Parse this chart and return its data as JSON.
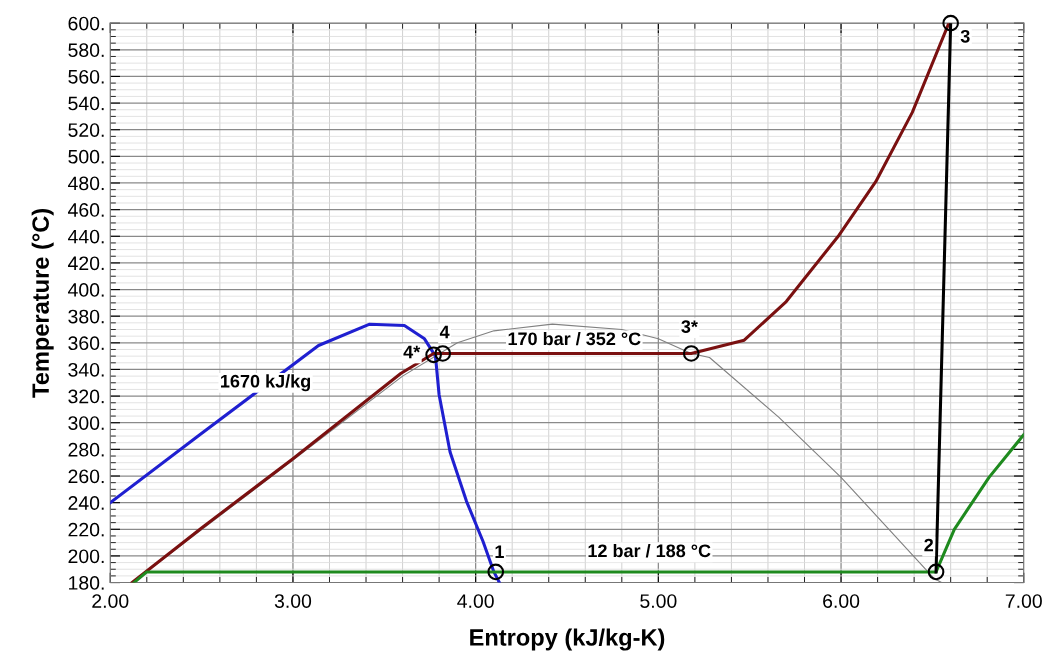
{
  "chart_data": {
    "type": "line",
    "xlabel": "Entropy (kJ/kg-K)",
    "ylabel": "Temperature (°C)",
    "xlim": [
      2.0,
      7.0
    ],
    "ylim": [
      180,
      600
    ],
    "xticks": [
      {
        "value": 2,
        "label": "2.00"
      },
      {
        "value": 3,
        "label": "3.00"
      },
      {
        "value": 4,
        "label": "4.00"
      },
      {
        "value": 5,
        "label": "5.00"
      },
      {
        "value": 6,
        "label": "6.00"
      },
      {
        "value": 7,
        "label": "7.00"
      }
    ],
    "yticks": [
      {
        "value": 180,
        "label": "180."
      },
      {
        "value": 200,
        "label": "200."
      },
      {
        "value": 220,
        "label": "220."
      },
      {
        "value": 240,
        "label": "240."
      },
      {
        "value": 260,
        "label": "260."
      },
      {
        "value": 280,
        "label": "280."
      },
      {
        "value": 300,
        "label": "300."
      },
      {
        "value": 320,
        "label": "320."
      },
      {
        "value": 340,
        "label": "340."
      },
      {
        "value": 360,
        "label": "360."
      },
      {
        "value": 380,
        "label": "380."
      },
      {
        "value": 400,
        "label": "400."
      },
      {
        "value": 420,
        "label": "420."
      },
      {
        "value": 440,
        "label": "440."
      },
      {
        "value": 460,
        "label": "460."
      },
      {
        "value": 480,
        "label": "480."
      },
      {
        "value": 500,
        "label": "500."
      },
      {
        "value": 520,
        "label": "520."
      },
      {
        "value": 540,
        "label": "540."
      },
      {
        "value": 560,
        "label": "560."
      },
      {
        "value": 580,
        "label": "580."
      },
      {
        "value": 600,
        "label": "600."
      }
    ],
    "grid": true,
    "legend": false,
    "series": [
      {
        "color": "#808080",
        "x": [
          2.12,
          3.0,
          3.6,
          3.9,
          4.1,
          4.42,
          4.8,
          5.0,
          5.18,
          5.28,
          5.66,
          6.0,
          6.51,
          6.55
        ],
        "values": [
          180,
          272,
          335,
          360,
          369,
          374,
          370,
          363,
          352,
          349,
          304,
          259,
          183,
          180
        ]
      },
      {
        "color": "#1f1fd0",
        "x": [
          2.0,
          2.49,
          3.14,
          3.42,
          3.61,
          3.72,
          3.78,
          3.8,
          3.86,
          3.95,
          4.04,
          4.1,
          4.13
        ],
        "values": [
          240,
          291,
          358,
          374,
          373,
          363,
          350,
          321,
          278,
          241,
          211,
          188,
          180
        ]
      },
      {
        "color": "#7a1010",
        "x": [
          2.12,
          2.5,
          3.0,
          3.59,
          3.77,
          5.18,
          5.47,
          5.7,
          5.99,
          6.19,
          6.39,
          6.59
        ],
        "values": [
          180,
          221,
          273,
          337,
          352,
          352,
          362,
          391,
          441,
          481,
          533,
          600
        ]
      },
      {
        "color": "#1e8a1e",
        "x": [
          2.13,
          2.2,
          6.52,
          6.62,
          6.81,
          7.0
        ],
        "values": [
          180,
          188,
          188,
          220,
          259,
          291
        ]
      },
      {
        "color": "#000000",
        "x": [
          6.52,
          6.6
        ],
        "values": [
          188,
          600
        ]
      },
      {
        "type": "scatter",
        "color": "#000000",
        "marker": "circle",
        "x": [
          4.11,
          6.52,
          6.6,
          5.18,
          3.82,
          3.77
        ],
        "values": [
          188,
          188,
          600,
          352,
          352,
          351
        ]
      }
    ],
    "annotations": [
      {
        "text": "1670 kJ/kg",
        "x": 2.85,
        "y": 330
      },
      "170 bar / 352 °C",
      "12 bar / 188 °C",
      {
        "text": "1",
        "x": 4.13,
        "y": 202
      },
      {
        "text": "2",
        "x": 6.48,
        "y": 207
      },
      {
        "text": "3",
        "x": 6.68,
        "y": 589
      },
      {
        "text": "3*",
        "x": 5.17,
        "y": 371
      },
      {
        "text": "4",
        "x": 3.83,
        "y": 367
      },
      {
        "text": "4*",
        "x": 3.65,
        "y": 352
      }
    ]
  }
}
